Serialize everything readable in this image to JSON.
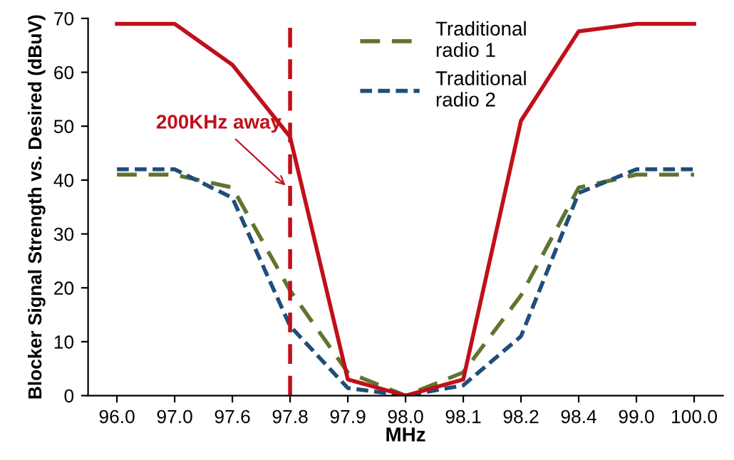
{
  "chart_data": {
    "type": "line",
    "xlabel": "MHz",
    "ylabel": "Blocker Signal Strength vs. Desired (dBuV)",
    "categories": [
      "96.0",
      "97.0",
      "97.6",
      "97.8",
      "97.9",
      "98.0",
      "98.1",
      "98.2",
      "98.4",
      "99.0",
      "100.0"
    ],
    "series": [
      {
        "name": "Traditional radio 1",
        "color": "#5f7530",
        "line_style": "dashed",
        "values": [
          41,
          41,
          38.6,
          19.5,
          4.3,
          0,
          4.3,
          18.6,
          38.6,
          41,
          41
        ]
      },
      {
        "name": "Traditional radio 2",
        "color": "#1f4e79",
        "line_style": "dotted",
        "values": [
          42,
          42,
          36.7,
          12.9,
          1.4,
          0,
          1.9,
          11,
          37.6,
          42,
          42
        ]
      },
      {
        "color": "#c0101a",
        "line_style": "solid",
        "values": [
          69,
          69,
          61.4,
          48,
          3,
          0,
          3,
          51,
          67.6,
          69,
          69
        ]
      }
    ],
    "ylim": [
      0,
      70
    ],
    "yticks": [
      0,
      10,
      20,
      30,
      40,
      50,
      60,
      70
    ],
    "grid": false,
    "legend": "top",
    "ref_lines": [
      {
        "axis": "x",
        "value": "97.8",
        "label": "200KHz away",
        "color": "#c0101a",
        "line_style": "dashed"
      }
    ]
  }
}
